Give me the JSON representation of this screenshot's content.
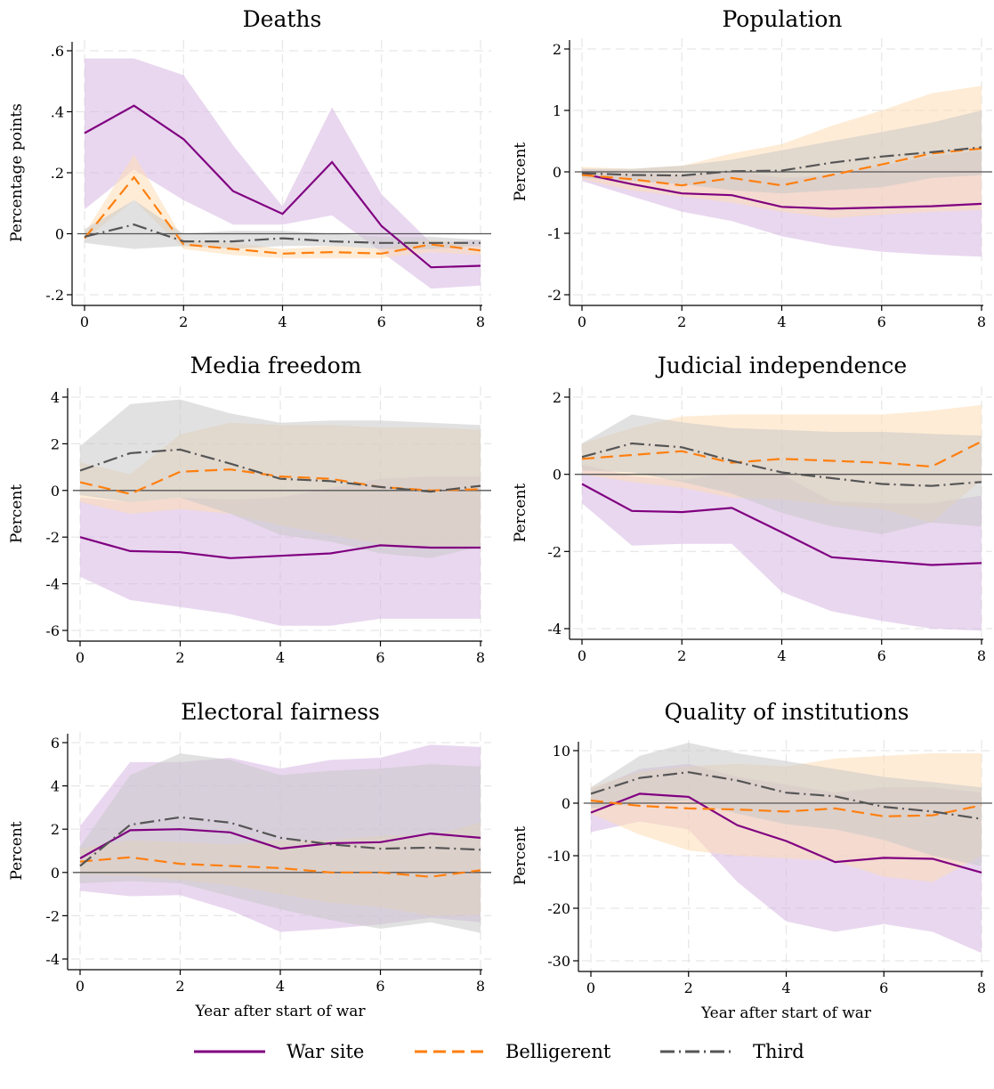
{
  "colors": {
    "war_site": "#800080",
    "belligerent": "#ff7f0e",
    "third": "#555555",
    "war_site_band": "#d7b7e2",
    "belligerent_band": "#fedcb4",
    "third_band": "#c8c8c8",
    "grid": "#e6e6e6",
    "zero_line": "#555555"
  },
  "legend": {
    "items": [
      {
        "label": "War site",
        "series_key": "war_site"
      },
      {
        "label": "Belligerent",
        "series_key": "belligerent"
      },
      {
        "label": "Third",
        "series_key": "third"
      }
    ]
  },
  "chart_data": [
    {
      "type": "line",
      "title": "Deaths",
      "xlabel": "",
      "ylabel": "Percentage points",
      "x": [
        0,
        1,
        2,
        3,
        4,
        5,
        6,
        7,
        8
      ],
      "xlim": [
        0,
        8
      ],
      "ylim": [
        -0.23,
        0.65
      ],
      "xticks": [
        0,
        2,
        4,
        6,
        8
      ],
      "yticks": [
        {
          "v": -0.2,
          "label": "-.2"
        },
        {
          "v": 0,
          "label": "0"
        },
        {
          "v": 0.2,
          "label": ".2"
        },
        {
          "v": 0.4,
          "label": ".4"
        },
        {
          "v": 0.6,
          "label": ".6"
        }
      ],
      "grid": true,
      "series": [
        {
          "key": "war_site",
          "name": "War site",
          "values": [
            0.33,
            0.42,
            0.31,
            0.14,
            0.065,
            0.235,
            0.025,
            -0.11,
            -0.105
          ],
          "lower": [
            0.08,
            0.21,
            0.11,
            0.03,
            0.03,
            0.06,
            -0.06,
            -0.18,
            -0.17
          ],
          "upper": [
            0.575,
            0.575,
            0.52,
            0.29,
            0.09,
            0.415,
            0.13,
            -0.03,
            -0.02
          ]
        },
        {
          "key": "belligerent",
          "name": "Belligerent",
          "values": [
            -0.015,
            0.185,
            -0.035,
            -0.05,
            -0.065,
            -0.06,
            -0.065,
            -0.035,
            -0.055
          ],
          "lower": [
            -0.02,
            0.11,
            -0.05,
            -0.07,
            -0.08,
            -0.08,
            -0.08,
            -0.06,
            -0.07
          ],
          "upper": [
            0.0,
            0.26,
            -0.02,
            -0.03,
            -0.05,
            -0.04,
            -0.05,
            -0.02,
            -0.04
          ]
        },
        {
          "key": "third",
          "name": "Third",
          "values": [
            -0.01,
            0.03,
            -0.025,
            -0.025,
            -0.015,
            -0.025,
            -0.03,
            -0.03,
            -0.03
          ],
          "lower": [
            -0.03,
            -0.05,
            -0.04,
            -0.05,
            -0.04,
            -0.04,
            -0.05,
            -0.05,
            -0.04
          ],
          "upper": [
            0.015,
            0.11,
            0.0,
            0.01,
            0.01,
            0.0,
            -0.01,
            -0.01,
            -0.02
          ]
        }
      ]
    },
    {
      "type": "line",
      "title": "Population",
      "xlabel": "",
      "ylabel": "Percent",
      "x": [
        0,
        1,
        2,
        3,
        4,
        5,
        6,
        7,
        8
      ],
      "xlim": [
        0,
        8
      ],
      "ylim": [
        -2.2,
        2.2
      ],
      "xticks": [
        0,
        2,
        4,
        6,
        8
      ],
      "yticks": [
        {
          "v": -2,
          "label": "-2"
        },
        {
          "v": -1,
          "label": "-1"
        },
        {
          "v": 0,
          "label": "0"
        },
        {
          "v": 1,
          "label": "1"
        },
        {
          "v": 2,
          "label": "2"
        }
      ],
      "grid": true,
      "series": [
        {
          "key": "war_site",
          "name": "War site",
          "values": [
            -0.03,
            -0.2,
            -0.35,
            -0.38,
            -0.57,
            -0.6,
            -0.58,
            -0.56,
            -0.52
          ],
          "lower": [
            -0.15,
            -0.4,
            -0.65,
            -0.8,
            -1.05,
            -1.2,
            -1.3,
            -1.35,
            -1.38
          ],
          "upper": [
            0.05,
            0.0,
            -0.05,
            0.02,
            -0.1,
            -0.05,
            0.1,
            0.25,
            0.35
          ]
        },
        {
          "key": "belligerent",
          "name": "Belligerent",
          "values": [
            -0.05,
            -0.12,
            -0.22,
            -0.1,
            -0.22,
            -0.05,
            0.12,
            0.3,
            0.38
          ],
          "lower": [
            -0.12,
            -0.3,
            -0.4,
            -0.5,
            -0.65,
            -0.75,
            -0.7,
            -0.65,
            -0.62
          ],
          "upper": [
            0.08,
            0.05,
            0.1,
            0.3,
            0.45,
            0.75,
            1.0,
            1.28,
            1.4
          ]
        },
        {
          "key": "third",
          "name": "Third",
          "values": [
            -0.02,
            -0.05,
            -0.06,
            0.01,
            0.02,
            0.15,
            0.25,
            0.32,
            0.4
          ],
          "lower": [
            -0.1,
            -0.15,
            -0.2,
            -0.3,
            -0.35,
            -0.3,
            -0.25,
            -0.1,
            -0.05
          ],
          "upper": [
            0.05,
            0.05,
            0.1,
            0.2,
            0.35,
            0.5,
            0.65,
            0.8,
            1.0
          ]
        }
      ]
    },
    {
      "type": "line",
      "title": "Media freedom",
      "xlabel": "",
      "ylabel": "Percent",
      "x": [
        0,
        1,
        2,
        3,
        4,
        5,
        6,
        7,
        8
      ],
      "xlim": [
        0,
        8
      ],
      "ylim": [
        -6.5,
        4.4
      ],
      "xticks": [
        0,
        2,
        4,
        6,
        8
      ],
      "yticks": [
        {
          "v": -6,
          "label": "-6"
        },
        {
          "v": -4,
          "label": "-4"
        },
        {
          "v": -2,
          "label": "-2"
        },
        {
          "v": 0,
          "label": "0"
        },
        {
          "v": 2,
          "label": "2"
        },
        {
          "v": 4,
          "label": "4"
        }
      ],
      "grid": true,
      "series": [
        {
          "key": "war_site",
          "name": "War site",
          "values": [
            -2.0,
            -2.6,
            -2.65,
            -2.9,
            -2.8,
            -2.7,
            -2.35,
            -2.45,
            -2.45
          ],
          "lower": [
            -3.7,
            -4.7,
            -5.0,
            -5.3,
            -5.8,
            -5.8,
            -5.5,
            -5.5,
            -5.5
          ],
          "upper": [
            -0.3,
            -0.5,
            -0.3,
            -0.4,
            -0.3,
            0.1,
            0.5,
            0.6,
            0.6
          ]
        },
        {
          "key": "belligerent",
          "name": "Belligerent",
          "values": [
            0.35,
            -0.15,
            0.8,
            0.9,
            0.6,
            0.5,
            0.15,
            0.0,
            0.05
          ],
          "lower": [
            -0.5,
            -1.0,
            -0.8,
            -1.0,
            -1.5,
            -1.9,
            -2.3,
            -2.5,
            -2.5
          ],
          "upper": [
            1.2,
            0.7,
            2.4,
            2.9,
            2.8,
            2.8,
            2.7,
            2.7,
            2.6
          ]
        },
        {
          "key": "third",
          "name": "Third",
          "values": [
            0.85,
            1.6,
            1.75,
            1.15,
            0.5,
            0.4,
            0.15,
            -0.05,
            0.2
          ],
          "lower": [
            -0.2,
            -0.5,
            -0.3,
            -1.0,
            -1.9,
            -2.2,
            -2.7,
            -2.9,
            -2.4
          ],
          "upper": [
            1.9,
            3.7,
            3.9,
            3.3,
            2.9,
            3.0,
            3.0,
            2.9,
            2.8
          ]
        }
      ]
    },
    {
      "type": "line",
      "title": "Judicial independence",
      "xlabel": "",
      "ylabel": "Percent",
      "x": [
        0,
        1,
        2,
        3,
        4,
        5,
        6,
        7,
        8
      ],
      "xlim": [
        0,
        8
      ],
      "ylim": [
        -4.4,
        2.2
      ],
      "xticks": [
        0,
        2,
        4,
        6,
        8
      ],
      "yticks": [
        {
          "v": -4,
          "label": "-4"
        },
        {
          "v": -2,
          "label": "-2"
        },
        {
          "v": 0,
          "label": "0"
        },
        {
          "v": 2,
          "label": "2"
        }
      ],
      "grid": true,
      "series": [
        {
          "key": "war_site",
          "name": "War site",
          "values": [
            -0.25,
            -0.95,
            -0.98,
            -0.87,
            -1.5,
            -2.15,
            -2.25,
            -2.35,
            -2.3
          ],
          "lower": [
            -0.75,
            -1.85,
            -1.8,
            -1.8,
            -3.05,
            -3.55,
            -3.8,
            -4.0,
            -4.05
          ],
          "upper": [
            0.25,
            -0.05,
            -0.15,
            0.05,
            0.0,
            -0.7,
            -0.75,
            -0.75,
            -0.55
          ]
        },
        {
          "key": "belligerent",
          "name": "Belligerent",
          "values": [
            0.4,
            0.5,
            0.6,
            0.3,
            0.4,
            0.35,
            0.3,
            0.2,
            0.85
          ],
          "lower": [
            0.0,
            -0.2,
            -0.35,
            -0.6,
            -0.65,
            -0.8,
            -0.9,
            -1.25,
            -0.15
          ],
          "upper": [
            0.8,
            1.2,
            1.5,
            1.55,
            1.55,
            1.55,
            1.55,
            1.65,
            1.8
          ]
        },
        {
          "key": "third",
          "name": "Third",
          "values": [
            0.45,
            0.8,
            0.7,
            0.35,
            0.05,
            -0.1,
            -0.25,
            -0.3,
            -0.2
          ],
          "lower": [
            0.1,
            0.05,
            -0.2,
            -0.5,
            -1.0,
            -1.35,
            -1.55,
            -1.25,
            -1.35
          ],
          "upper": [
            0.8,
            1.55,
            1.35,
            1.2,
            1.15,
            1.1,
            1.1,
            1.05,
            1.0
          ]
        }
      ]
    },
    {
      "type": "line",
      "title": "Electoral fairness",
      "xlabel": "Year after start of war",
      "ylabel": "Percent",
      "x": [
        0,
        1,
        2,
        3,
        4,
        5,
        6,
        7,
        8
      ],
      "xlim": [
        0,
        8
      ],
      "ylim": [
        -4.3,
        6.45
      ],
      "xticks": [
        0,
        2,
        4,
        6,
        8
      ],
      "yticks": [
        {
          "v": -4,
          "label": "-4"
        },
        {
          "v": -2,
          "label": "-2"
        },
        {
          "v": 0,
          "label": "0"
        },
        {
          "v": 2,
          "label": "2"
        },
        {
          "v": 4,
          "label": "4"
        },
        {
          "v": 6,
          "label": "6"
        }
      ],
      "grid": true,
      "series": [
        {
          "key": "war_site",
          "name": "War site",
          "values": [
            0.65,
            1.95,
            2.0,
            1.85,
            1.1,
            1.35,
            1.4,
            1.8,
            1.6
          ],
          "lower": [
            -0.85,
            -1.1,
            -1.05,
            -1.75,
            -2.75,
            -2.6,
            -2.4,
            -2.1,
            -2.3
          ],
          "upper": [
            2.15,
            5.1,
            5.1,
            5.3,
            4.8,
            5.2,
            5.3,
            5.9,
            5.8
          ]
        },
        {
          "key": "belligerent",
          "name": "Belligerent",
          "values": [
            0.5,
            0.7,
            0.4,
            0.3,
            0.2,
            0.0,
            0.0,
            -0.2,
            0.1
          ],
          "lower": [
            -0.1,
            -0.15,
            -0.35,
            -0.6,
            -1.0,
            -1.4,
            -1.6,
            -2.0,
            -1.95
          ],
          "upper": [
            1.1,
            1.5,
            1.4,
            1.3,
            1.5,
            1.5,
            1.7,
            1.7,
            2.3
          ]
        },
        {
          "key": "third",
          "name": "Third",
          "values": [
            0.3,
            2.2,
            2.55,
            2.3,
            1.6,
            1.3,
            1.1,
            1.15,
            1.05
          ],
          "lower": [
            -0.5,
            -0.4,
            -0.5,
            -1.1,
            -1.7,
            -2.2,
            -2.6,
            -2.3,
            -2.8
          ],
          "upper": [
            1.2,
            4.5,
            5.5,
            5.2,
            4.5,
            4.7,
            4.8,
            5.0,
            4.9
          ]
        }
      ]
    },
    {
      "type": "line",
      "title": "Quality of institutions",
      "xlabel": "Year after start of war",
      "ylabel": "Percent",
      "x": [
        0,
        1,
        2,
        3,
        4,
        5,
        6,
        7,
        8
      ],
      "xlim": [
        0,
        8
      ],
      "ylim": [
        -32,
        14
      ],
      "xticks": [
        0,
        2,
        4,
        6,
        8
      ],
      "yticks": [
        {
          "v": -30,
          "label": "-30"
        },
        {
          "v": -20,
          "label": "-20"
        },
        {
          "v": -10,
          "label": "-10"
        },
        {
          "v": 0,
          "label": "0"
        },
        {
          "v": 10,
          "label": "10"
        }
      ],
      "grid": true,
      "series": [
        {
          "key": "war_site",
          "name": "War site",
          "values": [
            -1.8,
            1.8,
            1.2,
            -4.2,
            -7.2,
            -11.2,
            -10.4,
            -10.6,
            -13.2
          ],
          "lower": [
            -5.5,
            -3.5,
            -5.0,
            -15.0,
            -22.5,
            -24.5,
            -23.0,
            -24.5,
            -28.5
          ],
          "upper": [
            2.5,
            6.5,
            7.5,
            5.0,
            3.5,
            2.0,
            3.0,
            3.0,
            2.0
          ]
        },
        {
          "key": "belligerent",
          "name": "Belligerent",
          "values": [
            0.5,
            -0.5,
            -1.0,
            -1.2,
            -1.6,
            -1.0,
            -2.5,
            -2.3,
            -0.4
          ],
          "lower": [
            -2.0,
            -6.0,
            -9.0,
            -10.0,
            -10.5,
            -11.0,
            -14.0,
            -15.0,
            -10.0
          ],
          "upper": [
            3.0,
            6.0,
            7.0,
            7.5,
            7.0,
            8.5,
            9.0,
            9.5,
            9.5
          ]
        },
        {
          "key": "third",
          "name": "Third",
          "values": [
            1.8,
            4.8,
            5.9,
            4.3,
            2.0,
            1.3,
            -0.7,
            -1.6,
            -3.0
          ],
          "lower": [
            -1.0,
            0.0,
            0.5,
            -2.0,
            -4.0,
            -5.0,
            -7.0,
            -10.0,
            -12.0
          ],
          "upper": [
            3.0,
            9.0,
            11.5,
            9.5,
            8.0,
            6.5,
            5.0,
            4.0,
            3.0
          ]
        }
      ]
    }
  ]
}
